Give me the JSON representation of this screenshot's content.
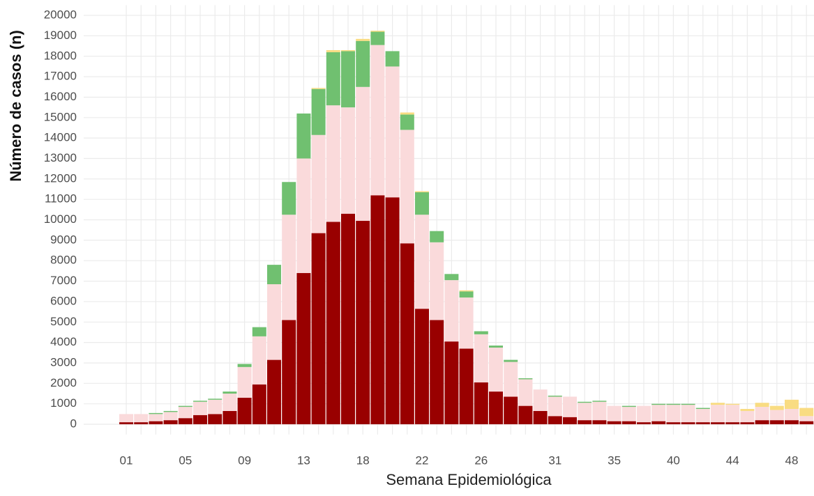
{
  "chart_data": {
    "type": "stacked_bar",
    "x_label": "Semana Epidemiológica",
    "y_label": "Número de casos (n)",
    "categories": [
      "01",
      null,
      null,
      null,
      "05",
      null,
      null,
      null,
      "09",
      null,
      null,
      null,
      "13",
      null,
      null,
      null,
      "18",
      null,
      null,
      null,
      "22",
      null,
      null,
      null,
      "26",
      null,
      null,
      null,
      null,
      "31",
      null,
      null,
      null,
      "35",
      null,
      null,
      null,
      "40",
      null,
      null,
      null,
      "44",
      null,
      null,
      null,
      "48",
      null
    ],
    "series": [
      {
        "color": "#990000",
        "values": [
          100,
          100,
          150,
          200,
          300,
          450,
          500,
          650,
          1300,
          1950,
          3150,
          5100,
          7400,
          9350,
          9900,
          10300,
          9950,
          11200,
          11100,
          8850,
          5650,
          5100,
          4050,
          3700,
          2050,
          1600,
          1350,
          900,
          650,
          400,
          350,
          200,
          200,
          150,
          150,
          100,
          150,
          100,
          100,
          100,
          100,
          100,
          100,
          200,
          200,
          200,
          150
        ]
      },
      {
        "color": "#fadadb",
        "values": [
          400,
          400,
          350,
          400,
          550,
          650,
          700,
          850,
          1500,
          2350,
          3700,
          5150,
          5600,
          4800,
          5700,
          5200,
          6550,
          7350,
          6400,
          5550,
          4600,
          3800,
          3000,
          2500,
          2350,
          2150,
          1700,
          1300,
          1050,
          950,
          1000,
          850,
          900,
          750,
          700,
          800,
          800,
          850,
          850,
          650,
          850,
          850,
          550,
          650,
          500,
          550,
          250
        ]
      },
      {
        "color": "#70c070",
        "values": [
          0,
          0,
          50,
          50,
          50,
          50,
          50,
          100,
          150,
          450,
          950,
          1600,
          2200,
          2250,
          2600,
          2750,
          2250,
          650,
          750,
          750,
          1100,
          550,
          300,
          300,
          150,
          100,
          100,
          50,
          0,
          50,
          0,
          50,
          50,
          0,
          50,
          0,
          50,
          50,
          50,
          50,
          0,
          0,
          0,
          0,
          0,
          0,
          0
        ]
      },
      {
        "color": "#f9dc82",
        "values": [
          0,
          0,
          0,
          0,
          0,
          0,
          0,
          0,
          0,
          0,
          0,
          0,
          0,
          50,
          100,
          50,
          100,
          50,
          0,
          100,
          50,
          0,
          0,
          50,
          0,
          0,
          0,
          0,
          0,
          0,
          0,
          0,
          0,
          0,
          0,
          0,
          0,
          0,
          0,
          0,
          100,
          50,
          100,
          200,
          200,
          450,
          400
        ]
      }
    ],
    "ylim": [
      -500,
      20500
    ],
    "yticks": [
      0,
      1000,
      2000,
      3000,
      4000,
      5000,
      6000,
      7000,
      8000,
      9000,
      10000,
      11000,
      12000,
      13000,
      14000,
      15000,
      16000,
      17000,
      18000,
      19000,
      20000
    ],
    "grid": true
  }
}
